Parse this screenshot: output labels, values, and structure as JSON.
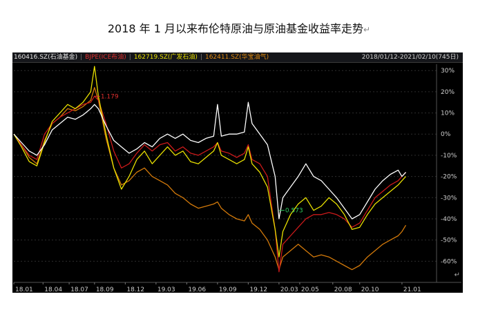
{
  "title": "2018 年 1 月以来布伦特原油与原油基金收益率走势",
  "title_mark": "↵",
  "legend": {
    "s1": "160416.SZ(石油基金)",
    "s2": "BJPE(ICE布油)",
    "s3": "162719.SZ(广发石油)",
    "s4": "162411.SZ(华宝油气)",
    "date_range": "2018/01/12-2021/02/10(745日)"
  },
  "annotations": {
    "high": "1.179",
    "low": "0.573"
  },
  "corner_mark": "↵",
  "chart_data": {
    "type": "line",
    "title": "2018 年 1 月以来布伦特原油与原油基金收益率走势",
    "xlabel": "",
    "ylabel": "",
    "ylim": [
      -70,
      33
    ],
    "y_ticks": [
      "30%",
      "20%",
      "10%",
      "0%",
      "-10%",
      "-20%",
      "-30%",
      "-40%",
      "-50%",
      "-60%"
    ],
    "y_tick_values": [
      30,
      20,
      10,
      0,
      -10,
      -20,
      -30,
      -40,
      -50,
      -60
    ],
    "x_ticks": [
      "18.01",
      "18.04",
      "18.07",
      "18.09",
      "18.12",
      "19.03",
      "19.06",
      "19.09",
      "19.12",
      "20.03",
      "20.05",
      "20.08",
      "20.10",
      "21.01"
    ],
    "x_tick_positions": [
      0.0,
      0.38,
      0.72,
      1.05,
      1.45,
      1.85,
      2.25,
      2.65,
      3.05,
      3.45,
      3.72,
      4.15,
      4.5,
      5.05
    ],
    "x_max": 5.5,
    "series": [
      {
        "name": "160416.SZ(石油基金)",
        "color": "#ffffff",
        "points": [
          [
            0,
            0
          ],
          [
            0.1,
            -4
          ],
          [
            0.2,
            -8
          ],
          [
            0.3,
            -10
          ],
          [
            0.4,
            -5
          ],
          [
            0.5,
            2
          ],
          [
            0.6,
            5
          ],
          [
            0.7,
            8
          ],
          [
            0.8,
            7
          ],
          [
            0.9,
            9
          ],
          [
            1.0,
            12
          ],
          [
            1.05,
            14
          ],
          [
            1.1,
            12
          ],
          [
            1.2,
            4
          ],
          [
            1.3,
            -3
          ],
          [
            1.4,
            -6
          ],
          [
            1.5,
            -9
          ],
          [
            1.6,
            -7
          ],
          [
            1.7,
            -4
          ],
          [
            1.8,
            -6
          ],
          [
            1.9,
            -2
          ],
          [
            2.0,
            0
          ],
          [
            2.1,
            -2
          ],
          [
            2.2,
            0
          ],
          [
            2.3,
            -3
          ],
          [
            2.4,
            -4
          ],
          [
            2.5,
            -2
          ],
          [
            2.6,
            -1
          ],
          [
            2.65,
            14
          ],
          [
            2.7,
            -1
          ],
          [
            2.8,
            0
          ],
          [
            2.9,
            0
          ],
          [
            3.0,
            1
          ],
          [
            3.05,
            15
          ],
          [
            3.1,
            5
          ],
          [
            3.2,
            0
          ],
          [
            3.3,
            -5
          ],
          [
            3.4,
            -20
          ],
          [
            3.45,
            -40
          ],
          [
            3.5,
            -30
          ],
          [
            3.6,
            -25
          ],
          [
            3.7,
            -20
          ],
          [
            3.8,
            -14
          ],
          [
            3.9,
            -20
          ],
          [
            4.0,
            -22
          ],
          [
            4.1,
            -26
          ],
          [
            4.2,
            -30
          ],
          [
            4.3,
            -35
          ],
          [
            4.4,
            -40
          ],
          [
            4.5,
            -38
          ],
          [
            4.6,
            -32
          ],
          [
            4.7,
            -26
          ],
          [
            4.8,
            -22
          ],
          [
            4.9,
            -19
          ],
          [
            5.0,
            -17
          ],
          [
            5.05,
            -20
          ],
          [
            5.1,
            -18
          ]
        ]
      },
      {
        "name": "BJPE(ICE布油)",
        "color": "#cc1a1a",
        "points": [
          [
            0,
            0
          ],
          [
            0.1,
            -5
          ],
          [
            0.2,
            -10
          ],
          [
            0.3,
            -12
          ],
          [
            0.4,
            0
          ],
          [
            0.5,
            5
          ],
          [
            0.6,
            8
          ],
          [
            0.7,
            10
          ],
          [
            0.8,
            12
          ],
          [
            0.9,
            14
          ],
          [
            1.0,
            15
          ],
          [
            1.05,
            17.9
          ],
          [
            1.1,
            16
          ],
          [
            1.2,
            5
          ],
          [
            1.3,
            -8
          ],
          [
            1.4,
            -16
          ],
          [
            1.5,
            -14
          ],
          [
            1.6,
            -9
          ],
          [
            1.7,
            -5
          ],
          [
            1.8,
            -8
          ],
          [
            1.9,
            -5
          ],
          [
            2.0,
            -4
          ],
          [
            2.1,
            -8
          ],
          [
            2.2,
            -6
          ],
          [
            2.3,
            -9
          ],
          [
            2.4,
            -10
          ],
          [
            2.5,
            -8
          ],
          [
            2.6,
            -6
          ],
          [
            2.65,
            -4
          ],
          [
            2.7,
            -8
          ],
          [
            2.8,
            -9
          ],
          [
            2.9,
            -11
          ],
          [
            3.0,
            -9
          ],
          [
            3.05,
            -5
          ],
          [
            3.1,
            -12
          ],
          [
            3.2,
            -14
          ],
          [
            3.3,
            -20
          ],
          [
            3.4,
            -45
          ],
          [
            3.45,
            -65
          ],
          [
            3.5,
            -52
          ],
          [
            3.6,
            -48
          ],
          [
            3.7,
            -44
          ],
          [
            3.8,
            -40
          ],
          [
            3.9,
            -38
          ],
          [
            4.0,
            -38
          ],
          [
            4.1,
            -37
          ],
          [
            4.2,
            -38
          ],
          [
            4.3,
            -40
          ],
          [
            4.4,
            -44
          ],
          [
            4.5,
            -42
          ],
          [
            4.6,
            -36
          ],
          [
            4.7,
            -30
          ],
          [
            4.8,
            -27
          ],
          [
            4.9,
            -24
          ],
          [
            5.0,
            -22
          ],
          [
            5.05,
            -20
          ],
          [
            5.1,
            -18
          ]
        ]
      },
      {
        "name": "162719.SZ(广发石油)",
        "color": "#e8e000",
        "points": [
          [
            0,
            0
          ],
          [
            0.1,
            -6
          ],
          [
            0.2,
            -13
          ],
          [
            0.3,
            -15
          ],
          [
            0.4,
            -4
          ],
          [
            0.5,
            6
          ],
          [
            0.6,
            10
          ],
          [
            0.7,
            14
          ],
          [
            0.8,
            12
          ],
          [
            0.9,
            15
          ],
          [
            1.0,
            20
          ],
          [
            1.05,
            32
          ],
          [
            1.1,
            18
          ],
          [
            1.2,
            0
          ],
          [
            1.3,
            -16
          ],
          [
            1.4,
            -26
          ],
          [
            1.5,
            -20
          ],
          [
            1.6,
            -12
          ],
          [
            1.7,
            -8
          ],
          [
            1.8,
            -14
          ],
          [
            1.9,
            -10
          ],
          [
            2.0,
            -6
          ],
          [
            2.1,
            -10
          ],
          [
            2.2,
            -8
          ],
          [
            2.3,
            -13
          ],
          [
            2.4,
            -14
          ],
          [
            2.5,
            -11
          ],
          [
            2.6,
            -8
          ],
          [
            2.65,
            -4
          ],
          [
            2.7,
            -10
          ],
          [
            2.8,
            -12
          ],
          [
            2.9,
            -14
          ],
          [
            3.0,
            -12
          ],
          [
            3.05,
            -6
          ],
          [
            3.1,
            -14
          ],
          [
            3.2,
            -18
          ],
          [
            3.3,
            -25
          ],
          [
            3.4,
            -45
          ],
          [
            3.45,
            -58
          ],
          [
            3.5,
            -46
          ],
          [
            3.6,
            -38
          ],
          [
            3.7,
            -33
          ],
          [
            3.8,
            -30
          ],
          [
            3.9,
            -36
          ],
          [
            4.0,
            -34
          ],
          [
            4.1,
            -30
          ],
          [
            4.2,
            -33
          ],
          [
            4.3,
            -38
          ],
          [
            4.4,
            -45
          ],
          [
            4.5,
            -44
          ],
          [
            4.6,
            -38
          ],
          [
            4.7,
            -33
          ],
          [
            4.8,
            -30
          ],
          [
            4.9,
            -27
          ],
          [
            5.0,
            -24
          ],
          [
            5.05,
            -22
          ],
          [
            5.1,
            -20
          ]
        ]
      },
      {
        "name": "162411.SZ(华宝油气)",
        "color": "#d47a0a",
        "points": [
          [
            0,
            0
          ],
          [
            0.1,
            -5
          ],
          [
            0.2,
            -11
          ],
          [
            0.3,
            -14
          ],
          [
            0.4,
            -3
          ],
          [
            0.5,
            5
          ],
          [
            0.6,
            8
          ],
          [
            0.7,
            12
          ],
          [
            0.8,
            11
          ],
          [
            0.9,
            13
          ],
          [
            1.0,
            16
          ],
          [
            1.05,
            22
          ],
          [
            1.1,
            16
          ],
          [
            1.2,
            -2
          ],
          [
            1.3,
            -16
          ],
          [
            1.4,
            -24
          ],
          [
            1.5,
            -22
          ],
          [
            1.6,
            -18
          ],
          [
            1.7,
            -16
          ],
          [
            1.8,
            -20
          ],
          [
            1.9,
            -22
          ],
          [
            2.0,
            -24
          ],
          [
            2.1,
            -28
          ],
          [
            2.2,
            -30
          ],
          [
            2.3,
            -33
          ],
          [
            2.4,
            -35
          ],
          [
            2.5,
            -34
          ],
          [
            2.6,
            -33
          ],
          [
            2.65,
            -32
          ],
          [
            2.7,
            -35
          ],
          [
            2.8,
            -38
          ],
          [
            2.9,
            -40
          ],
          [
            3.0,
            -41
          ],
          [
            3.05,
            -38
          ],
          [
            3.1,
            -42
          ],
          [
            3.2,
            -45
          ],
          [
            3.3,
            -50
          ],
          [
            3.4,
            -58
          ],
          [
            3.45,
            -64
          ],
          [
            3.5,
            -58
          ],
          [
            3.6,
            -55
          ],
          [
            3.7,
            -52
          ],
          [
            3.8,
            -55
          ],
          [
            3.9,
            -58
          ],
          [
            4.0,
            -57
          ],
          [
            4.1,
            -58
          ],
          [
            4.2,
            -60
          ],
          [
            4.3,
            -62
          ],
          [
            4.4,
            -64
          ],
          [
            4.5,
            -62
          ],
          [
            4.6,
            -58
          ],
          [
            4.7,
            -55
          ],
          [
            4.8,
            -52
          ],
          [
            4.9,
            -50
          ],
          [
            5.0,
            -48
          ],
          [
            5.05,
            -46
          ],
          [
            5.1,
            -43
          ]
        ]
      }
    ]
  }
}
